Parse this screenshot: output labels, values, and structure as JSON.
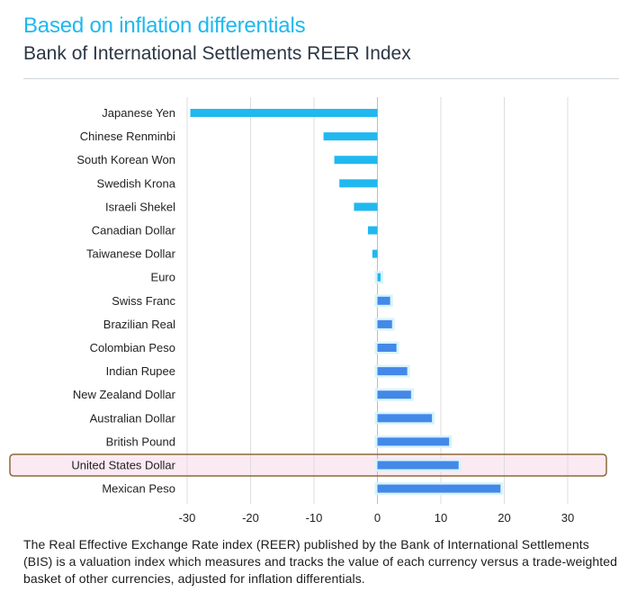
{
  "header": {
    "title": "Based on inflation differentials",
    "subtitle": "Bank of International Settlements REER Index"
  },
  "footnote": "The Real Effective Exchange Rate index (REER) published by the Bank of International Settlements (BIS) is a valuation index which measures and tracks the value of each currency versus a trade-weighted basket of other currencies, adjusted for inflation differentials.",
  "colors": {
    "title": "#1fb8ef",
    "bar": "#21b8f0",
    "bar_highlight": "#4488e8",
    "bar_shadow": "#d8f4fb",
    "highlight_box": "#8b6a3a",
    "highlight_band": "#fbeaf2",
    "grid": "#dddddd",
    "axis": "#bdbdbd"
  },
  "chart_data": {
    "type": "bar",
    "orientation": "horizontal",
    "categories": [
      "Japanese Yen",
      "Chinese Renminbi",
      "South Korean Won",
      "Swedish Krona",
      "Israeli Shekel",
      "Canadian Dollar",
      "Taiwanese Dollar",
      "Euro",
      "Swiss Franc",
      "Brazilian Real",
      "Colombian Peso",
      "Indian Rupee",
      "New Zealand Dollar",
      "Australian Dollar",
      "British Pound",
      "United States Dollar",
      "Mexican Peso"
    ],
    "values": [
      -29.5,
      -8.5,
      -6.8,
      -6.0,
      -3.7,
      -1.5,
      -0.8,
      0.5,
      2.0,
      2.3,
      3.0,
      4.7,
      5.3,
      8.6,
      11.3,
      12.8,
      19.4
    ],
    "xlim": [
      -33,
      38
    ],
    "xticks": [
      -30,
      -20,
      -10,
      0,
      10,
      20,
      30
    ],
    "highlighted_category": "United States Dollar",
    "grid": "vertical",
    "legend": "none"
  }
}
